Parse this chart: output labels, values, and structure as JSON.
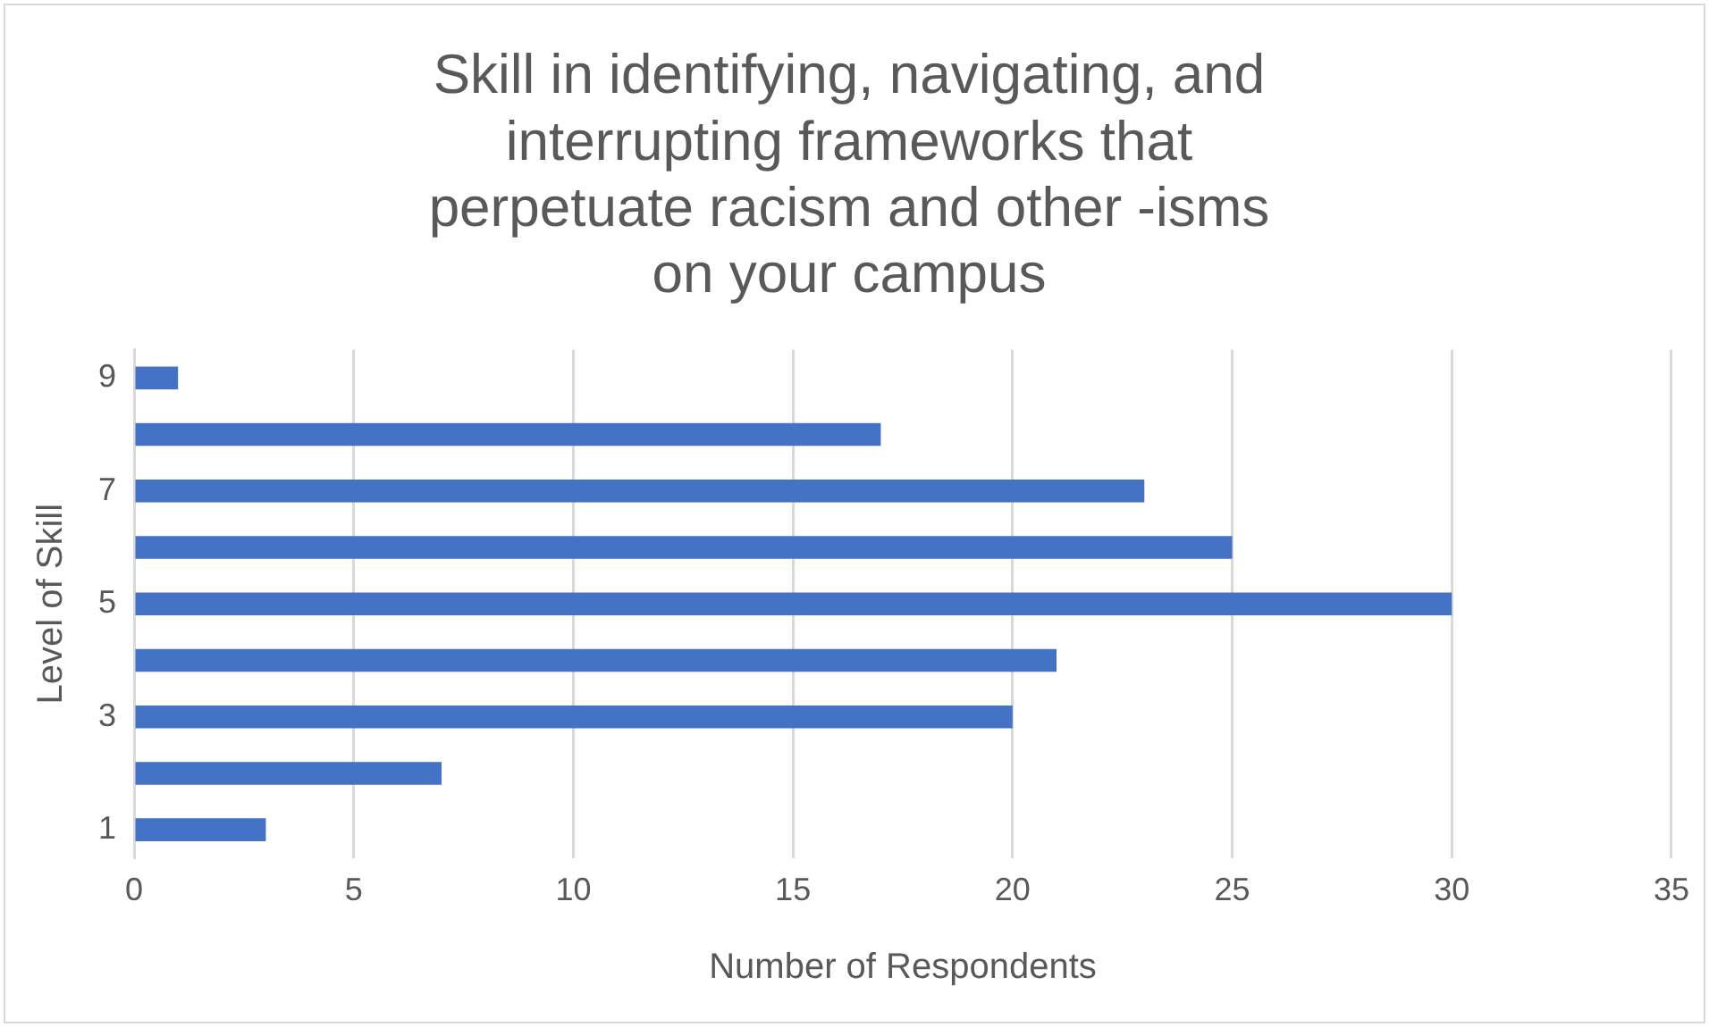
{
  "chart_data": {
    "type": "bar",
    "orientation": "horizontal",
    "title": "Skill in identifying, navigating, and interrupting frameworks that perpetuate racism and other -isms on your campus",
    "xlabel": "Number of Respondents",
    "ylabel": "Level of Skill",
    "categories": [
      "9",
      null,
      "7",
      null,
      "5",
      null,
      "3",
      null,
      "1"
    ],
    "values": [
      1,
      17,
      23,
      25,
      30,
      21,
      20,
      7,
      3
    ],
    "color": "#4472c4",
    "xlim": [
      0,
      35
    ],
    "xticks": [
      0,
      5,
      10,
      15,
      20,
      25,
      30,
      35
    ],
    "grid": "x",
    "legend": false
  }
}
